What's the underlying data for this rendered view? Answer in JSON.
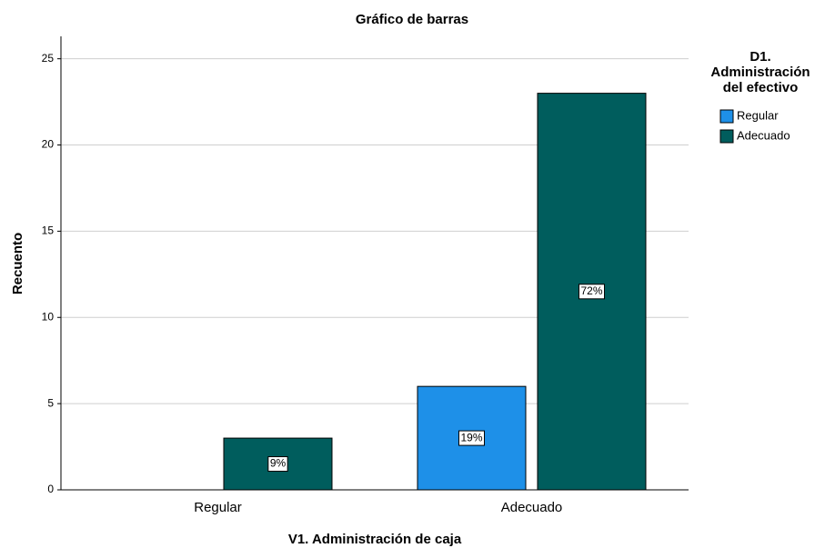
{
  "chart_data": {
    "type": "bar",
    "title": "Gráfico de barras",
    "x_label": "V1. Administración de caja",
    "y_label": "Recuento",
    "legend_title": [
      "D1.",
      "Administración",
      "del efectivo"
    ],
    "categories": [
      "Regular",
      "Adecuado"
    ],
    "series": [
      {
        "name": "Regular",
        "color": "#1e90e8",
        "values": [
          null,
          6
        ],
        "value_labels": [
          null,
          "19%"
        ]
      },
      {
        "name": "Adecuado",
        "color": "#005d5d",
        "values": [
          3,
          23
        ],
        "value_labels": [
          "9%",
          "72%"
        ]
      }
    ],
    "ylim": [
      0,
      26.3
    ],
    "yticks": [
      0,
      5,
      10,
      15,
      20,
      25
    ],
    "grid": true,
    "legend": "right"
  }
}
